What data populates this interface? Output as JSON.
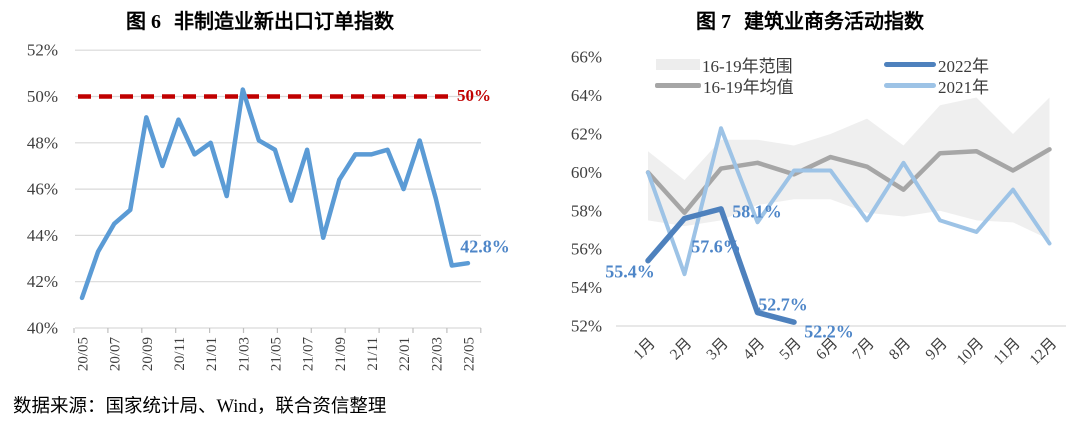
{
  "source_note": "数据来源：国家统计局、Wind，联合资信整理",
  "colors": {
    "left_line": "#5B9BD5",
    "reference_red": "#C00000",
    "band_fill": "#EDEDED",
    "mean_gray": "#A6A6A6",
    "line_2022": "#4E81BD",
    "line_2021": "#9DC3E6",
    "annotation_blue": "#4E86C8",
    "grid": "#D9D9D9",
    "axis_text": "#3F3F3F"
  },
  "chart_data": [
    {
      "id": "fig6",
      "type": "line",
      "fig_label": "图 6",
      "title": "非制造业新出口订单指数",
      "x": [
        "20/05",
        "20/06",
        "20/07",
        "20/08",
        "20/09",
        "20/10",
        "20/11",
        "20/12",
        "21/01",
        "21/02",
        "21/03",
        "21/04",
        "21/05",
        "21/06",
        "21/07",
        "21/08",
        "21/09",
        "21/10",
        "21/11",
        "21/12",
        "22/01",
        "22/02",
        "22/03",
        "22/04",
        "22/05"
      ],
      "x_tick_labels": [
        "20/05",
        "20/07",
        "20/09",
        "20/11",
        "21/01",
        "21/03",
        "21/05",
        "21/07",
        "21/09",
        "21/11",
        "22/01",
        "22/03",
        "22/05"
      ],
      "yticks": [
        "52%",
        "50%",
        "48%",
        "46%",
        "44%",
        "42%",
        "40%"
      ],
      "ylim": [
        40,
        52
      ],
      "grid": true,
      "legend": false,
      "series": [
        {
          "name": "非制造业新出口订单指数",
          "color": "#5B9BD5",
          "values": [
            41.3,
            43.3,
            44.5,
            45.1,
            49.1,
            47.0,
            49.0,
            47.5,
            48.0,
            45.7,
            50.3,
            48.1,
            47.7,
            45.5,
            47.7,
            43.9,
            46.4,
            47.5,
            47.5,
            47.7,
            46.0,
            48.1,
            45.6,
            42.7,
            42.8
          ]
        }
      ],
      "reference_line": {
        "value": 50,
        "label": "50%",
        "color": "#C00000",
        "style": "dashed"
      },
      "end_label": {
        "text": "42.8%",
        "x": "22/05",
        "value": 42.8
      }
    },
    {
      "id": "fig7",
      "type": "line",
      "fig_label": "图 7",
      "title": "建筑业商务活动指数",
      "x": [
        "1月",
        "2月",
        "3月",
        "4月",
        "5月",
        "6月",
        "7月",
        "8月",
        "9月",
        "10月",
        "11月",
        "12月"
      ],
      "yticks": [
        "66%",
        "64%",
        "62%",
        "60%",
        "58%",
        "56%",
        "54%",
        "52%"
      ],
      "ylim": [
        52,
        66
      ],
      "grid": false,
      "legend_position": "top",
      "legend": [
        "16-19年范围",
        "16-19年均值",
        "2022年",
        "2021年"
      ],
      "band": {
        "name": "16-19年范围",
        "upper": [
          61.1,
          59.6,
          61.7,
          61.7,
          61.4,
          62.0,
          62.8,
          61.4,
          63.5,
          63.9,
          62.0,
          63.9
        ],
        "lower": [
          57.5,
          57.2,
          57.5,
          58.3,
          58.6,
          58.6,
          57.9,
          57.7,
          58.0,
          57.5,
          57.4,
          56.5
        ]
      },
      "series": [
        {
          "name": "16-19年均值",
          "color": "#A6A6A6",
          "values": [
            60.0,
            57.9,
            60.2,
            60.5,
            59.9,
            60.8,
            60.3,
            59.1,
            61.0,
            61.1,
            60.1,
            61.2
          ]
        },
        {
          "name": "2021年",
          "color": "#9DC3E6",
          "values": [
            60.0,
            54.7,
            62.3,
            57.4,
            60.1,
            60.1,
            57.5,
            60.5,
            57.5,
            56.9,
            59.1,
            56.3
          ]
        },
        {
          "name": "2022年",
          "color": "#4E81BD",
          "values": [
            55.4,
            57.6,
            58.1,
            52.7,
            52.2
          ]
        }
      ],
      "annotations": [
        {
          "text": "55.4%",
          "x": "1月",
          "value": 55.4
        },
        {
          "text": "57.6%",
          "x": "2月",
          "value": 57.6
        },
        {
          "text": "58.1%",
          "x": "3月",
          "value": 58.1
        },
        {
          "text": "52.7%",
          "x": "4月",
          "value": 52.7
        },
        {
          "text": "52.2%",
          "x": "5月",
          "value": 52.2
        }
      ]
    }
  ]
}
